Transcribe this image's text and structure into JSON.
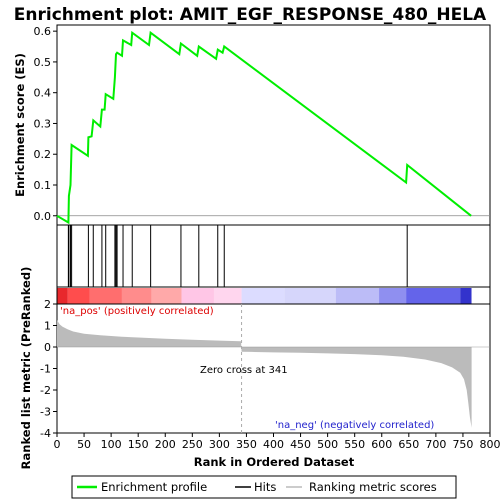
{
  "chart_data": {
    "type": "line",
    "title": "Enrichment plot: AMIT_EGF_RESPONSE_480_HELA",
    "es_panel": {
      "ylabel": "Enrichment score (ES)",
      "ylim": [
        -0.03,
        0.62
      ],
      "yticks": [
        "0.0",
        "0.1",
        "0.2",
        "0.3",
        "0.4",
        "0.5",
        "0.6"
      ],
      "series": [
        {
          "name": "Enrichment profile",
          "color": "#00ee00",
          "x": [
            0,
            21,
            22,
            25,
            27,
            57,
            58,
            64,
            67,
            80,
            83,
            88,
            90,
            104,
            107,
            109,
            111,
            120,
            122,
            137,
            139,
            170,
            173,
            226,
            229,
            259,
            262,
            294,
            297,
            306,
            309,
            645,
            647,
            765
          ],
          "y": [
            0.0,
            -0.022,
            0.065,
            0.1,
            0.23,
            0.195,
            0.255,
            0.258,
            0.31,
            0.29,
            0.345,
            0.345,
            0.395,
            0.38,
            0.45,
            0.525,
            0.53,
            0.52,
            0.57,
            0.555,
            0.595,
            0.555,
            0.595,
            0.525,
            0.56,
            0.52,
            0.55,
            0.51,
            0.54,
            0.53,
            0.55,
            0.108,
            0.165,
            0.0
          ]
        }
      ]
    },
    "hits": [
      21,
      22,
      25,
      27,
      58,
      67,
      83,
      90,
      107,
      109,
      111,
      122,
      139,
      173,
      229,
      262,
      297,
      309,
      647
    ],
    "metric_panel": {
      "ylabel": "Ranked list metric (PreRanked)",
      "ylim": [
        -4,
        2
      ],
      "yticks": [
        "2",
        "1",
        "0",
        "-1",
        "-2",
        "-3",
        "-4"
      ],
      "xlabel": "Rank in Ordered Dataset",
      "xlim": [
        0,
        800
      ],
      "xticks": [
        "0",
        "50",
        "100",
        "150",
        "200",
        "250",
        "300",
        "350",
        "400",
        "450",
        "500",
        "550",
        "600",
        "650",
        "700",
        "750",
        "800"
      ],
      "zero_cross_text": "Zero cross at 341",
      "pos_label": "'na_pos' (positively correlated)",
      "neg_label": "'na_neg' (negatively correlated)",
      "pos_color": "#dd0000",
      "neg_color": "#2222cc",
      "curve_x": [
        0,
        5,
        10,
        20,
        30,
        50,
        80,
        120,
        160,
        200,
        250,
        300,
        340,
        341,
        360,
        400,
        450,
        500,
        550,
        600,
        640,
        680,
        710,
        730,
        745,
        752,
        757,
        760,
        763,
        766
      ],
      "curve_y": [
        1.25,
        1.05,
        0.95,
        0.82,
        0.72,
        0.62,
        0.55,
        0.48,
        0.43,
        0.38,
        0.34,
        0.3,
        0.27,
        -0.22,
        -0.23,
        -0.25,
        -0.27,
        -0.3,
        -0.33,
        -0.38,
        -0.45,
        -0.58,
        -0.75,
        -0.95,
        -1.2,
        -1.5,
        -2.0,
        -2.6,
        -3.3,
        -3.75
      ]
    },
    "colorbar": {
      "segments": [
        {
          "from": 0,
          "to": 20,
          "color": "#e8282c"
        },
        {
          "from": 20,
          "to": 60,
          "color": "#ff4d4d"
        },
        {
          "from": 60,
          "to": 120,
          "color": "#ff6e6e"
        },
        {
          "from": 120,
          "to": 175,
          "color": "#ff8c8c"
        },
        {
          "from": 175,
          "to": 230,
          "color": "#ffa9a9"
        },
        {
          "from": 230,
          "to": 290,
          "color": "#ffc6e6"
        },
        {
          "from": 290,
          "to": 341,
          "color": "#ffd6ee"
        },
        {
          "from": 341,
          "to": 420,
          "color": "#dcdcff"
        },
        {
          "from": 420,
          "to": 515,
          "color": "#d6d6fb"
        },
        {
          "from": 515,
          "to": 595,
          "color": "#bcbcf7"
        },
        {
          "from": 595,
          "to": 645,
          "color": "#8f8ff0"
        },
        {
          "from": 645,
          "to": 745,
          "color": "#6464ea"
        },
        {
          "from": 745,
          "to": 766,
          "color": "#3333cc"
        }
      ]
    },
    "legend": [
      {
        "label": "Enrichment profile",
        "color": "#00ee00"
      },
      {
        "label": "Hits",
        "color": "#000000"
      },
      {
        "label": "Ranking metric scores",
        "color": "#bbbbbb"
      }
    ]
  }
}
